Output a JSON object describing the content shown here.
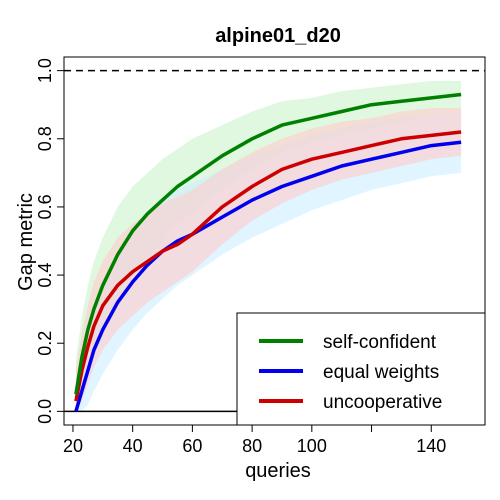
{
  "chart_data": {
    "type": "line",
    "title": "alpine01_d20",
    "xlabel": "queries",
    "ylabel": "Gap metric",
    "xlim": [
      17,
      158
    ],
    "ylim": [
      -0.04,
      1.04
    ],
    "x_ticks": [
      20,
      40,
      60,
      80,
      100,
      120,
      140
    ],
    "x_tick_labels": [
      "20",
      "40",
      "60",
      "80",
      "100",
      "",
      "140"
    ],
    "y_ticks": [
      0.0,
      0.2,
      0.4,
      0.6,
      0.8,
      1.0
    ],
    "y_tick_labels": [
      "0.0",
      "0.2",
      "0.4",
      "0.6",
      "0.8",
      "1.0"
    ],
    "reference_lines": [
      {
        "y": 1.0,
        "style": "dashed"
      },
      {
        "y": 0.0,
        "style": "solid"
      }
    ],
    "legend_position": "bottom-right",
    "x": [
      21,
      23,
      25,
      27,
      30,
      35,
      40,
      45,
      50,
      55,
      60,
      70,
      80,
      90,
      100,
      110,
      120,
      130,
      140,
      150
    ],
    "series": [
      {
        "name": "self-confident",
        "color": "#008000",
        "band_color": "#ccf2cc",
        "values": [
          0.05,
          0.16,
          0.24,
          0.3,
          0.37,
          0.46,
          0.53,
          0.58,
          0.62,
          0.66,
          0.69,
          0.75,
          0.8,
          0.84,
          0.86,
          0.88,
          0.9,
          0.91,
          0.92,
          0.93
        ],
        "lower": [
          0.0,
          0.06,
          0.12,
          0.17,
          0.24,
          0.33,
          0.4,
          0.45,
          0.5,
          0.55,
          0.58,
          0.65,
          0.71,
          0.76,
          0.79,
          0.81,
          0.83,
          0.85,
          0.87,
          0.88
        ],
        "upper": [
          0.15,
          0.28,
          0.37,
          0.44,
          0.51,
          0.6,
          0.66,
          0.7,
          0.74,
          0.77,
          0.8,
          0.84,
          0.88,
          0.91,
          0.92,
          0.94,
          0.95,
          0.96,
          0.97,
          0.97
        ]
      },
      {
        "name": "equal weights",
        "color": "#0000ee",
        "band_color": "#cceeff",
        "values": [
          0.0,
          0.06,
          0.12,
          0.18,
          0.24,
          0.32,
          0.38,
          0.43,
          0.47,
          0.5,
          0.52,
          0.57,
          0.62,
          0.66,
          0.69,
          0.72,
          0.74,
          0.76,
          0.78,
          0.79
        ],
        "lower": [
          0.0,
          0.0,
          0.02,
          0.06,
          0.11,
          0.18,
          0.24,
          0.29,
          0.33,
          0.37,
          0.4,
          0.46,
          0.51,
          0.55,
          0.59,
          0.62,
          0.65,
          0.67,
          0.69,
          0.7
        ],
        "upper": [
          0.05,
          0.16,
          0.24,
          0.31,
          0.38,
          0.46,
          0.53,
          0.58,
          0.62,
          0.65,
          0.67,
          0.71,
          0.75,
          0.78,
          0.81,
          0.83,
          0.85,
          0.86,
          0.87,
          0.88
        ]
      },
      {
        "name": "uncooperative",
        "color": "#cc0000",
        "band_color": "#ffcccc",
        "values": [
          0.03,
          0.12,
          0.19,
          0.25,
          0.31,
          0.37,
          0.41,
          0.44,
          0.47,
          0.49,
          0.52,
          0.6,
          0.66,
          0.71,
          0.74,
          0.76,
          0.78,
          0.8,
          0.81,
          0.82
        ],
        "lower": [
          0.0,
          0.03,
          0.08,
          0.13,
          0.18,
          0.24,
          0.28,
          0.32,
          0.35,
          0.38,
          0.41,
          0.49,
          0.56,
          0.61,
          0.65,
          0.68,
          0.7,
          0.72,
          0.74,
          0.75
        ],
        "upper": [
          0.12,
          0.23,
          0.31,
          0.38,
          0.44,
          0.51,
          0.55,
          0.58,
          0.61,
          0.63,
          0.65,
          0.71,
          0.76,
          0.8,
          0.83,
          0.85,
          0.86,
          0.88,
          0.89,
          0.89
        ]
      }
    ]
  }
}
